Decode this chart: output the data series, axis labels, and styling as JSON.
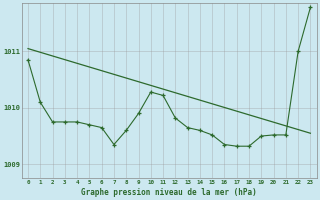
{
  "bg_color": "#cce8f0",
  "line_color": "#2d6a2d",
  "grid_color": "#999999",
  "xlabel": "Graphe pression niveau de la mer (hPa)",
  "ylim": [
    1008.75,
    1011.85
  ],
  "xlim": [
    -0.5,
    23.5
  ],
  "yticks": [
    1009,
    1010,
    1011
  ],
  "xticks": [
    0,
    1,
    2,
    3,
    4,
    5,
    6,
    7,
    8,
    9,
    10,
    11,
    12,
    13,
    14,
    15,
    16,
    17,
    18,
    19,
    20,
    21,
    22,
    23
  ],
  "trend_x": [
    0,
    23
  ],
  "trend_y": [
    1011.05,
    1009.55
  ],
  "jagged_x": [
    0,
    1,
    2,
    3,
    4,
    5,
    6,
    7,
    8,
    9,
    10,
    11,
    12,
    13,
    14,
    15,
    16,
    17,
    18,
    19,
    20,
    21,
    22,
    23
  ],
  "jagged_y": [
    1010.85,
    1010.1,
    1009.75,
    1009.75,
    1009.75,
    1009.7,
    1009.65,
    1009.35,
    1009.6,
    1009.9,
    1010.28,
    1010.22,
    1009.82,
    1009.65,
    1009.6,
    1009.52,
    1009.35,
    1009.32,
    1009.32,
    1009.5,
    1009.52,
    1009.52,
    1011.0,
    1011.78
  ]
}
